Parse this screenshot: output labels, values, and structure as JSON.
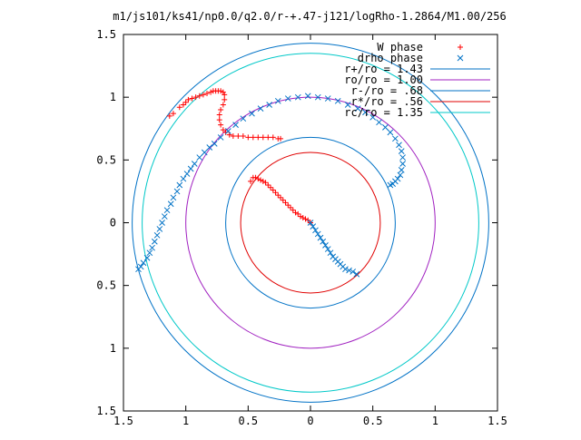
{
  "chart_data": {
    "type": "scatter",
    "title": "m1/js101/ks41/np0.0/q2.0/r-+.47-j121/logRho-1.2864/M1.00/256",
    "xlim": [
      -1.5,
      1.5
    ],
    "ylim": [
      -1.5,
      1.5
    ],
    "x_tick_values": [
      -1.5,
      -1,
      -0.5,
      0,
      0.5,
      1,
      1.5
    ],
    "x_tick_labels": [
      "1.5",
      "1",
      "0.5",
      "0",
      "0.5",
      "1",
      "1.5"
    ],
    "y_tick_values": [
      1.5,
      1,
      0.5,
      0,
      -0.5,
      -1,
      -1.5
    ],
    "y_tick_labels": [
      "1.5",
      "1",
      "0.5",
      "0",
      "0.5",
      "1",
      "1.5"
    ],
    "grid": false,
    "legend_position": "top-right",
    "series": [
      {
        "name": "W phase",
        "marker": "plus",
        "color": "#ff0000",
        "points": [
          [
            -1.13,
            0.85
          ],
          [
            -1.1,
            0.87
          ],
          [
            -1.05,
            0.92
          ],
          [
            -1.02,
            0.94
          ],
          [
            -1.0,
            0.96
          ],
          [
            -0.98,
            0.98
          ],
          [
            -0.95,
            0.99
          ],
          [
            -0.92,
            1.0
          ],
          [
            -0.89,
            1.01
          ],
          [
            -0.86,
            1.02
          ],
          [
            -0.83,
            1.03
          ],
          [
            -0.8,
            1.04
          ],
          [
            -0.78,
            1.05
          ],
          [
            -0.76,
            1.05
          ],
          [
            -0.74,
            1.05
          ],
          [
            -0.72,
            1.05
          ],
          [
            -0.7,
            1.04
          ],
          [
            -0.69,
            1.02
          ],
          [
            -0.69,
            0.98
          ],
          [
            -0.7,
            0.94
          ],
          [
            -0.72,
            0.9
          ],
          [
            -0.73,
            0.86
          ],
          [
            -0.73,
            0.82
          ],
          [
            -0.72,
            0.78
          ],
          [
            -0.7,
            0.74
          ],
          [
            -0.68,
            0.72
          ],
          [
            -0.65,
            0.7
          ],
          [
            -0.62,
            0.69
          ],
          [
            -0.58,
            0.69
          ],
          [
            -0.54,
            0.69
          ],
          [
            -0.5,
            0.68
          ],
          [
            -0.46,
            0.68
          ],
          [
            -0.42,
            0.68
          ],
          [
            -0.38,
            0.68
          ],
          [
            -0.34,
            0.68
          ],
          [
            -0.3,
            0.68
          ],
          [
            -0.26,
            0.67
          ],
          [
            -0.24,
            0.67
          ],
          [
            -0.48,
            0.33
          ],
          [
            -0.46,
            0.36
          ],
          [
            -0.44,
            0.36
          ],
          [
            -0.42,
            0.35
          ],
          [
            -0.4,
            0.34
          ],
          [
            -0.38,
            0.33
          ],
          [
            -0.36,
            0.32
          ],
          [
            -0.34,
            0.3
          ],
          [
            -0.32,
            0.28
          ],
          [
            -0.3,
            0.26
          ],
          [
            -0.28,
            0.24
          ],
          [
            -0.26,
            0.22
          ],
          [
            -0.24,
            0.2
          ],
          [
            -0.22,
            0.18
          ],
          [
            -0.2,
            0.16
          ],
          [
            -0.18,
            0.14
          ],
          [
            -0.16,
            0.12
          ],
          [
            -0.14,
            0.1
          ],
          [
            -0.12,
            0.08
          ],
          [
            -0.1,
            0.07
          ],
          [
            -0.08,
            0.05
          ],
          [
            -0.06,
            0.04
          ],
          [
            -0.04,
            0.03
          ],
          [
            -0.02,
            0.02
          ],
          [
            0.0,
            0.0
          ]
        ]
      },
      {
        "name": "drho phase",
        "marker": "cross",
        "color": "#0072c6",
        "points": [
          [
            -1.38,
            -0.37
          ],
          [
            -1.36,
            -0.35
          ],
          [
            -1.34,
            -0.32
          ],
          [
            -1.31,
            -0.28
          ],
          [
            -1.29,
            -0.24
          ],
          [
            -1.27,
            -0.2
          ],
          [
            -1.25,
            -0.15
          ],
          [
            -1.23,
            -0.1
          ],
          [
            -1.21,
            -0.05
          ],
          [
            -1.19,
            0.0
          ],
          [
            -1.17,
            0.05
          ],
          [
            -1.15,
            0.1
          ],
          [
            -1.12,
            0.15
          ],
          [
            -1.1,
            0.2
          ],
          [
            -1.07,
            0.25
          ],
          [
            -1.05,
            0.3
          ],
          [
            -1.02,
            0.35
          ],
          [
            -0.99,
            0.39
          ],
          [
            -0.96,
            0.43
          ],
          [
            -0.93,
            0.47
          ],
          [
            -0.89,
            0.52
          ],
          [
            -0.85,
            0.56
          ],
          [
            -0.81,
            0.6
          ],
          [
            -0.77,
            0.63
          ],
          [
            -0.72,
            0.68
          ],
          [
            -0.66,
            0.73
          ],
          [
            -0.6,
            0.78
          ],
          [
            -0.54,
            0.83
          ],
          [
            -0.47,
            0.87
          ],
          [
            -0.4,
            0.91
          ],
          [
            -0.33,
            0.94
          ],
          [
            -0.26,
            0.97
          ],
          [
            -0.18,
            0.99
          ],
          [
            -0.1,
            1.0
          ],
          [
            -0.02,
            1.01
          ],
          [
            0.06,
            1.0
          ],
          [
            0.14,
            0.99
          ],
          [
            0.22,
            0.97
          ],
          [
            0.3,
            0.94
          ],
          [
            0.38,
            0.91
          ],
          [
            0.44,
            0.88
          ],
          [
            0.5,
            0.84
          ],
          [
            0.55,
            0.8
          ],
          [
            0.6,
            0.76
          ],
          [
            0.64,
            0.72
          ],
          [
            0.68,
            0.67
          ],
          [
            0.71,
            0.62
          ],
          [
            0.73,
            0.57
          ],
          [
            0.74,
            0.52
          ],
          [
            0.74,
            0.47
          ],
          [
            0.73,
            0.42
          ],
          [
            0.72,
            0.38
          ],
          [
            0.7,
            0.35
          ],
          [
            0.68,
            0.33
          ],
          [
            0.66,
            0.31
          ],
          [
            0.64,
            0.3
          ],
          [
            0.0,
            0.0
          ],
          [
            0.02,
            -0.03
          ],
          [
            0.04,
            -0.06
          ],
          [
            0.06,
            -0.09
          ],
          [
            0.08,
            -0.12
          ],
          [
            0.1,
            -0.15
          ],
          [
            0.12,
            -0.18
          ],
          [
            0.14,
            -0.21
          ],
          [
            0.16,
            -0.24
          ],
          [
            0.18,
            -0.27
          ],
          [
            0.2,
            -0.29
          ],
          [
            0.22,
            -0.31
          ],
          [
            0.24,
            -0.33
          ],
          [
            0.26,
            -0.35
          ],
          [
            0.28,
            -0.37
          ],
          [
            0.31,
            -0.38
          ],
          [
            0.34,
            -0.39
          ],
          [
            0.37,
            -0.41
          ]
        ]
      },
      {
        "name": "r+/ro = 1.43",
        "type": "circle",
        "radius": 1.43,
        "color": "#0072c6"
      },
      {
        "name": "ro/ro = 1.00",
        "type": "circle",
        "radius": 1.0,
        "color": "#a020c0"
      },
      {
        "name": "r-/ro = .68",
        "type": "circle",
        "radius": 0.68,
        "color": "#0072c6"
      },
      {
        "name": "r*/ro = .56",
        "type": "circle",
        "radius": 0.56,
        "color": "#e00000"
      },
      {
        "name": "rc/ro = 1.35",
        "type": "circle",
        "radius": 1.35,
        "color": "#00c8c8"
      }
    ]
  }
}
